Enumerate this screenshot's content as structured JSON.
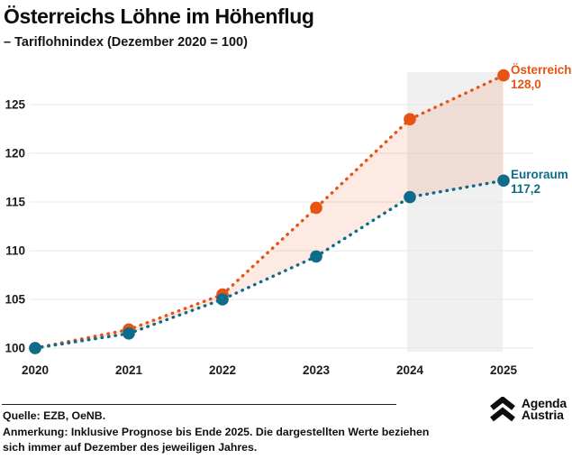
{
  "header": {
    "title": "Österreichs Löhne im Höhenflug",
    "subtitle": "– Tariflohnindex (Dezember 2020 = 100)"
  },
  "chart_data": {
    "type": "line",
    "style": "dotted-with-markers",
    "x": [
      2020,
      2021,
      2022,
      2023,
      2024,
      2025
    ],
    "y_ticks": [
      100,
      105,
      110,
      115,
      120,
      125
    ],
    "ylim": [
      99,
      129.5
    ],
    "grid": true,
    "series": [
      {
        "name": "Österreich",
        "color": "#e65312",
        "values": [
          100,
          101.9,
          105.5,
          114.4,
          123.5,
          128.0
        ],
        "end_label": "Österreich",
        "end_value_label": "128,0"
      },
      {
        "name": "Euroraum",
        "color": "#0e6b8a",
        "values": [
          100,
          101.5,
          105.0,
          109.4,
          115.5,
          117.2
        ],
        "end_label": "Euroraum",
        "end_value_label": "117,2"
      }
    ],
    "area_between": {
      "color": "#e8521a",
      "opacity": 0.12
    },
    "forecast_band": {
      "from": 2024,
      "to": 2025,
      "color": "#f0f0f0"
    },
    "grid_color": "#e7e7e7",
    "legend_position": "right-of-line-ends"
  },
  "footer": {
    "source": "Quelle: EZB, OeNB.",
    "note": "Anmerkung: Inklusive Prognose bis Ende 2025. Die dargestellten Werte beziehen sich immer auf Dezember des jeweiligen Jahres.",
    "logo": {
      "line1": "Agenda",
      "line2": "Austria",
      "icon": "double-chevron-up"
    }
  }
}
